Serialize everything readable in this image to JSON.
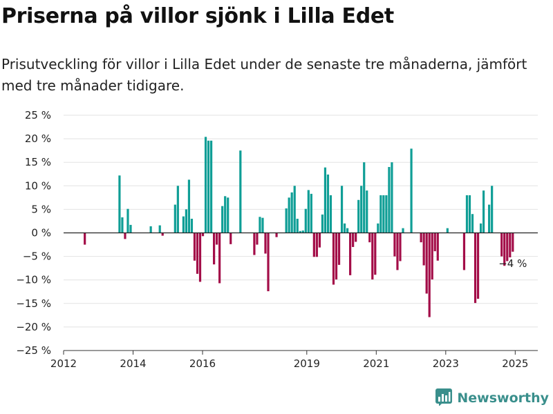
{
  "title": "Priserna på villor sjönk i Lilla Edet",
  "subtitle": "Prisutveckling för villor i Lilla Edet under de senaste tre månaderna, jämfört med tre månader tidigare.",
  "brand": {
    "name": "Newsworthy",
    "icon": "newsworthy-logo-icon",
    "color": "#3a8f8c"
  },
  "chart_data": {
    "type": "bar",
    "title": "",
    "xlabel": "",
    "ylabel": "",
    "ylim": [
      -25,
      25
    ],
    "y_ticks": [
      25,
      20,
      15,
      10,
      5,
      0,
      -5,
      -10,
      -15,
      -20,
      -25
    ],
    "y_tick_labels": [
      "25 %",
      "20 %",
      "15 %",
      "10 %",
      "5 %",
      "0 %",
      "−5 %",
      "−10 %",
      "−15 %",
      "−20 %",
      "−25 %"
    ],
    "x_ticks": [
      2012,
      2014,
      2016,
      2019,
      2021,
      2023,
      2025
    ],
    "x_tick_labels": [
      "2012",
      "2014",
      "2016",
      "2019",
      "2021",
      "2023",
      "2025"
    ],
    "xlim": [
      2012.0,
      2025.65
    ],
    "grid": true,
    "colors": {
      "positive": "#0f9e96",
      "negative": "#a30d48"
    },
    "annotation": {
      "text": "−4 %",
      "x": 2024.93,
      "y": -4
    },
    "series": [
      {
        "values": [
          {
            "x": 2012.61,
            "y": -2.5
          },
          {
            "x": 2013.61,
            "y": 12.2
          },
          {
            "x": 2013.69,
            "y": 3.3
          },
          {
            "x": 2013.77,
            "y": -1.3
          },
          {
            "x": 2013.85,
            "y": 5.1
          },
          {
            "x": 2013.93,
            "y": 1.7
          },
          {
            "x": 2014.51,
            "y": 1.4
          },
          {
            "x": 2014.77,
            "y": 1.6
          },
          {
            "x": 2014.85,
            "y": -0.6
          },
          {
            "x": 2015.21,
            "y": 6.0
          },
          {
            "x": 2015.29,
            "y": 10.0
          },
          {
            "x": 2015.45,
            "y": 3.5
          },
          {
            "x": 2015.53,
            "y": 5.0
          },
          {
            "x": 2015.61,
            "y": 11.3
          },
          {
            "x": 2015.69,
            "y": 3.0
          },
          {
            "x": 2015.77,
            "y": -5.9
          },
          {
            "x": 2015.85,
            "y": -8.7
          },
          {
            "x": 2015.93,
            "y": -10.4
          },
          {
            "x": 2016.01,
            "y": -0.7
          },
          {
            "x": 2016.09,
            "y": 20.4
          },
          {
            "x": 2016.17,
            "y": 19.6
          },
          {
            "x": 2016.25,
            "y": 19.6
          },
          {
            "x": 2016.33,
            "y": -6.7
          },
          {
            "x": 2016.41,
            "y": -2.5
          },
          {
            "x": 2016.49,
            "y": -10.7
          },
          {
            "x": 2016.57,
            "y": 5.7
          },
          {
            "x": 2016.65,
            "y": 7.8
          },
          {
            "x": 2016.73,
            "y": 7.5
          },
          {
            "x": 2016.81,
            "y": -2.4
          },
          {
            "x": 2017.09,
            "y": 17.5
          },
          {
            "x": 2017.49,
            "y": -4.7
          },
          {
            "x": 2017.57,
            "y": -2.5
          },
          {
            "x": 2017.65,
            "y": 3.4
          },
          {
            "x": 2017.73,
            "y": 3.2
          },
          {
            "x": 2017.81,
            "y": -4.4
          },
          {
            "x": 2017.89,
            "y": -12.4
          },
          {
            "x": 2018.13,
            "y": -0.9
          },
          {
            "x": 2018.41,
            "y": 5.2
          },
          {
            "x": 2018.49,
            "y": 7.5
          },
          {
            "x": 2018.57,
            "y": 8.6
          },
          {
            "x": 2018.65,
            "y": 10.0
          },
          {
            "x": 2018.73,
            "y": 3.0
          },
          {
            "x": 2018.81,
            "y": 0.4
          },
          {
            "x": 2018.89,
            "y": 0.5
          },
          {
            "x": 2018.97,
            "y": 5.1
          },
          {
            "x": 2019.05,
            "y": 9.1
          },
          {
            "x": 2019.13,
            "y": 8.3
          },
          {
            "x": 2019.21,
            "y": -5.1
          },
          {
            "x": 2019.29,
            "y": -5.1
          },
          {
            "x": 2019.37,
            "y": -3.1
          },
          {
            "x": 2019.45,
            "y": 3.9
          },
          {
            "x": 2019.53,
            "y": 13.9
          },
          {
            "x": 2019.61,
            "y": 12.4
          },
          {
            "x": 2019.69,
            "y": 8.0
          },
          {
            "x": 2019.77,
            "y": -11.0
          },
          {
            "x": 2019.85,
            "y": -9.9
          },
          {
            "x": 2019.93,
            "y": -6.8
          },
          {
            "x": 2020.01,
            "y": 10.0
          },
          {
            "x": 2020.09,
            "y": 2.0
          },
          {
            "x": 2020.17,
            "y": 1.0
          },
          {
            "x": 2020.25,
            "y": -9.0
          },
          {
            "x": 2020.33,
            "y": -3.0
          },
          {
            "x": 2020.41,
            "y": -1.9
          },
          {
            "x": 2020.49,
            "y": 7.0
          },
          {
            "x": 2020.57,
            "y": 10.0
          },
          {
            "x": 2020.65,
            "y": 15.0
          },
          {
            "x": 2020.73,
            "y": 9.0
          },
          {
            "x": 2020.81,
            "y": -2.0
          },
          {
            "x": 2020.89,
            "y": -9.9
          },
          {
            "x": 2020.97,
            "y": -8.9
          },
          {
            "x": 2021.05,
            "y": 2.0
          },
          {
            "x": 2021.13,
            "y": 8.0
          },
          {
            "x": 2021.21,
            "y": 8.0
          },
          {
            "x": 2021.29,
            "y": 8.0
          },
          {
            "x": 2021.37,
            "y": 14.0
          },
          {
            "x": 2021.45,
            "y": 15.0
          },
          {
            "x": 2021.53,
            "y": -5.0
          },
          {
            "x": 2021.61,
            "y": -7.9
          },
          {
            "x": 2021.69,
            "y": -6.0
          },
          {
            "x": 2021.77,
            "y": 1.0
          },
          {
            "x": 2022.01,
            "y": 17.9
          },
          {
            "x": 2022.29,
            "y": -2.0
          },
          {
            "x": 2022.37,
            "y": -6.9
          },
          {
            "x": 2022.45,
            "y": -12.9
          },
          {
            "x": 2022.53,
            "y": -17.9
          },
          {
            "x": 2022.61,
            "y": -9.9
          },
          {
            "x": 2022.69,
            "y": -3.9
          },
          {
            "x": 2022.77,
            "y": -5.9
          },
          {
            "x": 2023.05,
            "y": 1.0
          },
          {
            "x": 2023.53,
            "y": -7.9
          },
          {
            "x": 2023.61,
            "y": 8.0
          },
          {
            "x": 2023.69,
            "y": 8.0
          },
          {
            "x": 2023.77,
            "y": 4.0
          },
          {
            "x": 2023.85,
            "y": -14.9
          },
          {
            "x": 2023.93,
            "y": -14.0
          },
          {
            "x": 2024.01,
            "y": 2.0
          },
          {
            "x": 2024.09,
            "y": 9.0
          },
          {
            "x": 2024.25,
            "y": 6.0
          },
          {
            "x": 2024.33,
            "y": 10.0
          },
          {
            "x": 2024.61,
            "y": -5.0
          },
          {
            "x": 2024.69,
            "y": -7.0
          },
          {
            "x": 2024.77,
            "y": -6.0
          },
          {
            "x": 2024.85,
            "y": -5.2
          },
          {
            "x": 2024.93,
            "y": -4.0
          }
        ]
      }
    ]
  }
}
